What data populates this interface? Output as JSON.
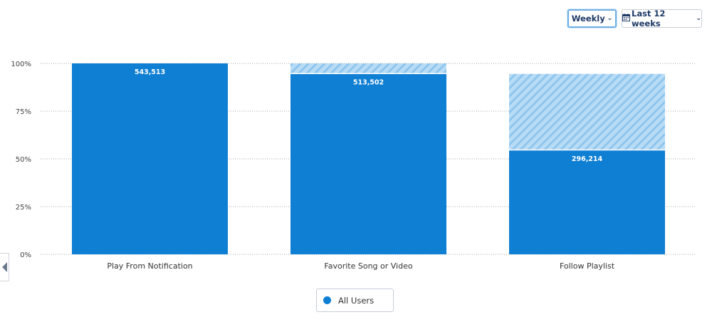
{
  "controls": {
    "interval_label": "Weekly",
    "range_label": "Last 12 weeks",
    "calendar_icon": "calendar-icon",
    "chevron_icon": "chevron-down-icon"
  },
  "legend": {
    "label": "All Users",
    "color": "#0f7fd4"
  },
  "colors": {
    "bar": "#0f7fd4",
    "hatch_bg": "#b9dcf5",
    "hatch_line": "#8ec6ee",
    "grid": "#a9a9a9"
  },
  "chart_data": {
    "type": "bar",
    "categories": [
      "Play From Notification",
      "Favorite Song or Video",
      "Follow Playlist"
    ],
    "series": [
      {
        "name": "All Users",
        "values_percent": [
          100,
          94.5,
          54.5
        ],
        "data_labels": [
          "543,513",
          "513,502",
          "296,214"
        ]
      }
    ],
    "dropoff_overlay_percent": [
      0,
      100,
      94.5
    ],
    "yticks": [
      "0%",
      "25%",
      "50%",
      "75%",
      "100%"
    ],
    "ylim": [
      0,
      100
    ],
    "grid": true,
    "legend_position": "bottom"
  }
}
